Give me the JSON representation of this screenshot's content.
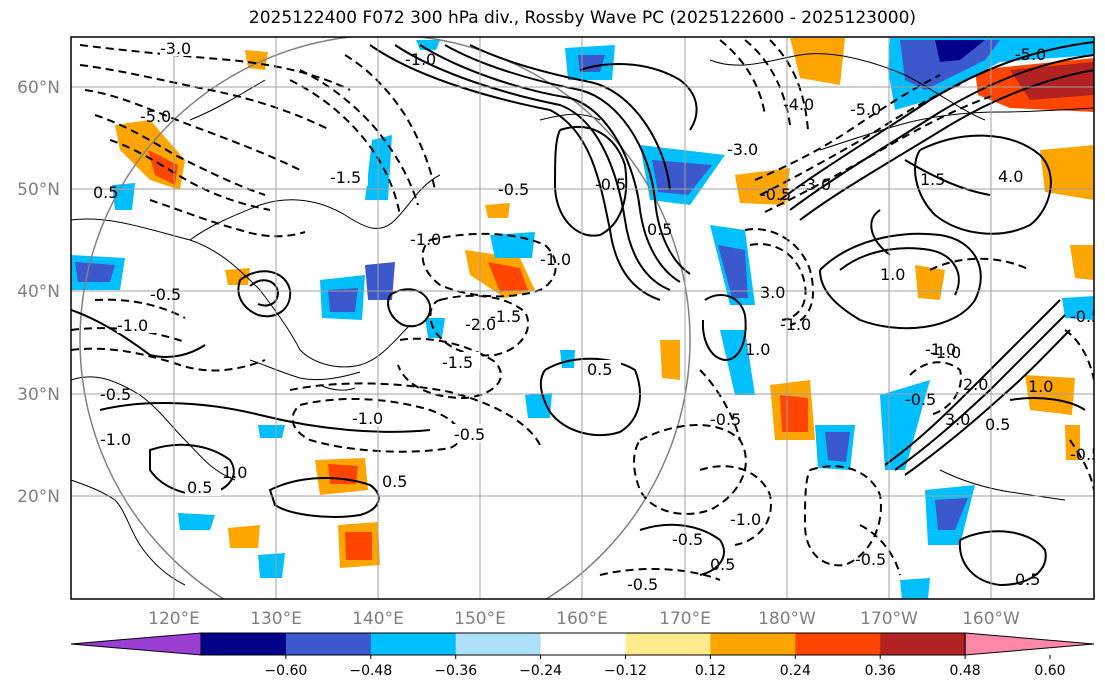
{
  "title": "2025122400 F072 300 hPa div., Rossby Wave PC (2025122600 - 2025123000)",
  "lat_labels": [
    "60°N",
    "50°N",
    "40°N",
    "30°N",
    "20°N"
  ],
  "lon_labels": [
    "120°E",
    "130°E",
    "140°E",
    "150°E",
    "160°E",
    "170°E",
    "180°W",
    "170°W",
    "160°W"
  ],
  "colorbar": {
    "colors": [
      "#9b3fd4",
      "#00008b",
      "#3b58cc",
      "#00bfff",
      "#aee0fa",
      "#ffffff",
      "#ffea8e",
      "#ffa500",
      "#ff4500",
      "#b22222",
      "#ff88a8"
    ],
    "tick_labels": [
      "−0.60",
      "−0.48",
      "−0.36",
      "−0.24",
      "−0.12",
      "0.12",
      "0.24",
      "0.36",
      "0.48",
      "0.60"
    ]
  },
  "contour_labels": {
    "c1": "-3.0",
    "c2": "-5.0",
    "c3": "-5.0",
    "c4": "-1.0",
    "c5": "-1.5",
    "c6": "-1.5",
    "c7": "-1.0",
    "c8": "-1.0",
    "c9": "-0.5",
    "c10": "-0.5",
    "c11": "-0.5",
    "c12": "-1.0",
    "c13": "-1.5",
    "c14": "-2.0",
    "c15": "-1.0",
    "c16": "-0.5",
    "c17": "0.5",
    "c18": "0.5",
    "c19": "0.5",
    "c20": "1.0",
    "c21": "-0.5",
    "c22": "-0.5",
    "c23": "-0.5",
    "c24": "-0.5",
    "c25": "-1.0",
    "c26": "-0.5",
    "c27": "0.5",
    "c28": "-0.5",
    "c29": "-1.0",
    "c30": "-3.0",
    "c31": "-4.0",
    "c32": "-5.0",
    "c33": "-3.0",
    "c34": "4.0",
    "c35": "3.0",
    "c36": "1.0",
    "c37": "1.5",
    "c38": "1.0",
    "c39": "3.0",
    "c40": "2.0",
    "c41": "-0.5",
    "c42": "-1.0",
    "c43": "1.0",
    "c44": "0.5",
    "c45": "-0.5",
    "c46": "0.5",
    "c47": "-1.0",
    "c48": "-1.0",
    "c49": "0.5",
    "c50": "-0.5",
    "c51": "0.5"
  }
}
